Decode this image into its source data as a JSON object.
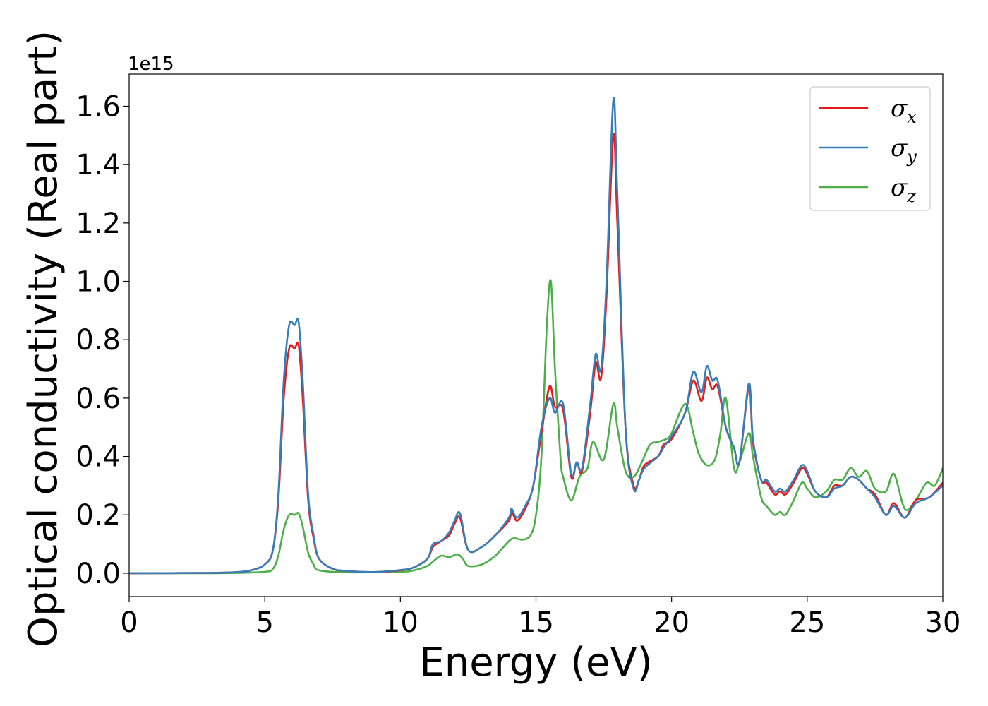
{
  "chart_data": {
    "type": "line",
    "xlabel": "Energy (eV)",
    "ylabel": "Optical conductivity (Real part)",
    "y_offset_label": "1e15",
    "xlim": [
      0,
      30
    ],
    "ylim": [
      -0.08,
      1.71
    ],
    "x_ticks": [
      0,
      5,
      10,
      15,
      20,
      25,
      30
    ],
    "x_tick_labels": [
      "0",
      "5",
      "10",
      "15",
      "20",
      "25",
      "30"
    ],
    "y_ticks": [
      0.0,
      0.2,
      0.4,
      0.6,
      0.8,
      1.0,
      1.2,
      1.4,
      1.6
    ],
    "y_tick_labels": [
      "0.0",
      "0.2",
      "0.4",
      "0.6",
      "0.8",
      "1.0",
      "1.2",
      "1.4",
      "1.6"
    ],
    "grid": false,
    "legend_position": "top-right",
    "legend": [
      {
        "symbol": "σ",
        "subscript": "x",
        "color": "#e41a1c"
      },
      {
        "symbol": "σ",
        "subscript": "y",
        "color": "#377eb8"
      },
      {
        "symbol": "σ",
        "subscript": "z",
        "color": "#4daf4a"
      }
    ],
    "series": [
      {
        "color": "#e41a1c",
        "points": [
          [
            0,
            0
          ],
          [
            3,
            0.001
          ],
          [
            4,
            0.004
          ],
          [
            4.5,
            0.01
          ],
          [
            5,
            0.03
          ],
          [
            5.3,
            0.08
          ],
          [
            5.5,
            0.25
          ],
          [
            5.7,
            0.6
          ],
          [
            5.9,
            0.77
          ],
          [
            6.1,
            0.77
          ],
          [
            6.25,
            0.78
          ],
          [
            6.4,
            0.6
          ],
          [
            6.6,
            0.25
          ],
          [
            6.8,
            0.12
          ],
          [
            7,
            0.05
          ],
          [
            7.5,
            0.015
          ],
          [
            8,
            0.008
          ],
          [
            9,
            0.004
          ],
          [
            10,
            0.01
          ],
          [
            10.5,
            0.02
          ],
          [
            11,
            0.05
          ],
          [
            11.2,
            0.09
          ],
          [
            11.5,
            0.11
          ],
          [
            11.8,
            0.13
          ],
          [
            12,
            0.17
          ],
          [
            12.2,
            0.19
          ],
          [
            12.5,
            0.08
          ],
          [
            13,
            0.09
          ],
          [
            13.5,
            0.13
          ],
          [
            14,
            0.18
          ],
          [
            14.1,
            0.21
          ],
          [
            14.3,
            0.18
          ],
          [
            14.6,
            0.22
          ],
          [
            14.9,
            0.3
          ],
          [
            15.2,
            0.48
          ],
          [
            15.5,
            0.64
          ],
          [
            15.7,
            0.57
          ],
          [
            16,
            0.56
          ],
          [
            16.3,
            0.33
          ],
          [
            16.5,
            0.38
          ],
          [
            16.7,
            0.35
          ],
          [
            17,
            0.55
          ],
          [
            17.2,
            0.72
          ],
          [
            17.4,
            0.67
          ],
          [
            17.6,
            0.95
          ],
          [
            17.85,
            1.5
          ],
          [
            18,
            1.2
          ],
          [
            18.3,
            0.5
          ],
          [
            18.6,
            0.3
          ],
          [
            18.8,
            0.32
          ],
          [
            19,
            0.37
          ],
          [
            19.5,
            0.4
          ],
          [
            19.7,
            0.44
          ],
          [
            20,
            0.46
          ],
          [
            20.5,
            0.55
          ],
          [
            20.8,
            0.66
          ],
          [
            21.1,
            0.59
          ],
          [
            21.3,
            0.67
          ],
          [
            21.5,
            0.63
          ],
          [
            21.7,
            0.64
          ],
          [
            22,
            0.5
          ],
          [
            22.3,
            0.43
          ],
          [
            22.5,
            0.38
          ],
          [
            22.85,
            0.64
          ],
          [
            23,
            0.45
          ],
          [
            23.3,
            0.32
          ],
          [
            23.5,
            0.31
          ],
          [
            23.8,
            0.27
          ],
          [
            24,
            0.28
          ],
          [
            24.2,
            0.27
          ],
          [
            24.5,
            0.31
          ],
          [
            24.8,
            0.36
          ],
          [
            25,
            0.34
          ],
          [
            25.3,
            0.28
          ],
          [
            25.7,
            0.26
          ],
          [
            26,
            0.3
          ],
          [
            26.3,
            0.3
          ],
          [
            26.6,
            0.33
          ],
          [
            26.9,
            0.32
          ],
          [
            27.2,
            0.29
          ],
          [
            27.5,
            0.27
          ],
          [
            27.9,
            0.2
          ],
          [
            28.2,
            0.24
          ],
          [
            28.6,
            0.19
          ],
          [
            29,
            0.25
          ],
          [
            29.5,
            0.26
          ],
          [
            30,
            0.31
          ]
        ]
      },
      {
        "color": "#377eb8",
        "points": [
          [
            0,
            0
          ],
          [
            3,
            0.001
          ],
          [
            4,
            0.004
          ],
          [
            4.5,
            0.01
          ],
          [
            5,
            0.03
          ],
          [
            5.3,
            0.08
          ],
          [
            5.5,
            0.27
          ],
          [
            5.7,
            0.66
          ],
          [
            5.9,
            0.85
          ],
          [
            6.1,
            0.85
          ],
          [
            6.25,
            0.86
          ],
          [
            6.4,
            0.66
          ],
          [
            6.6,
            0.27
          ],
          [
            6.8,
            0.13
          ],
          [
            7,
            0.05
          ],
          [
            7.5,
            0.016
          ],
          [
            8,
            0.008
          ],
          [
            9,
            0.004
          ],
          [
            10,
            0.011
          ],
          [
            10.5,
            0.02
          ],
          [
            11,
            0.05
          ],
          [
            11.2,
            0.1
          ],
          [
            11.5,
            0.11
          ],
          [
            11.8,
            0.14
          ],
          [
            12,
            0.18
          ],
          [
            12.2,
            0.205
          ],
          [
            12.5,
            0.08
          ],
          [
            13,
            0.09
          ],
          [
            13.5,
            0.13
          ],
          [
            14,
            0.19
          ],
          [
            14.1,
            0.22
          ],
          [
            14.3,
            0.19
          ],
          [
            14.6,
            0.23
          ],
          [
            14.9,
            0.3
          ],
          [
            15.2,
            0.5
          ],
          [
            15.5,
            0.6
          ],
          [
            15.7,
            0.55
          ],
          [
            16,
            0.58
          ],
          [
            16.3,
            0.34
          ],
          [
            16.5,
            0.38
          ],
          [
            16.7,
            0.36
          ],
          [
            17,
            0.58
          ],
          [
            17.2,
            0.75
          ],
          [
            17.4,
            0.7
          ],
          [
            17.6,
            1.0
          ],
          [
            17.85,
            1.62
          ],
          [
            18,
            1.3
          ],
          [
            18.3,
            0.5
          ],
          [
            18.6,
            0.29
          ],
          [
            18.8,
            0.32
          ],
          [
            19,
            0.36
          ],
          [
            19.5,
            0.4
          ],
          [
            19.7,
            0.43
          ],
          [
            20,
            0.47
          ],
          [
            20.5,
            0.55
          ],
          [
            20.8,
            0.69
          ],
          [
            21.1,
            0.62
          ],
          [
            21.3,
            0.71
          ],
          [
            21.5,
            0.66
          ],
          [
            21.7,
            0.66
          ],
          [
            22,
            0.5
          ],
          [
            22.3,
            0.43
          ],
          [
            22.5,
            0.38
          ],
          [
            22.85,
            0.65
          ],
          [
            23,
            0.46
          ],
          [
            23.3,
            0.32
          ],
          [
            23.5,
            0.32
          ],
          [
            23.8,
            0.28
          ],
          [
            24,
            0.29
          ],
          [
            24.2,
            0.28
          ],
          [
            24.5,
            0.32
          ],
          [
            24.8,
            0.37
          ],
          [
            25,
            0.35
          ],
          [
            25.3,
            0.28
          ],
          [
            25.7,
            0.26
          ],
          [
            26,
            0.29
          ],
          [
            26.3,
            0.3
          ],
          [
            26.6,
            0.33
          ],
          [
            26.9,
            0.32
          ],
          [
            27.2,
            0.29
          ],
          [
            27.5,
            0.26
          ],
          [
            27.9,
            0.2
          ],
          [
            28.2,
            0.23
          ],
          [
            28.6,
            0.19
          ],
          [
            29,
            0.24
          ],
          [
            29.5,
            0.26
          ],
          [
            30,
            0.3
          ]
        ]
      },
      {
        "color": "#4daf4a",
        "points": [
          [
            0,
            0
          ],
          [
            3,
            0
          ],
          [
            4,
            0.001
          ],
          [
            5,
            0.005
          ],
          [
            5.3,
            0.015
          ],
          [
            5.5,
            0.06
          ],
          [
            5.7,
            0.15
          ],
          [
            5.9,
            0.2
          ],
          [
            6.1,
            0.2
          ],
          [
            6.25,
            0.205
          ],
          [
            6.4,
            0.16
          ],
          [
            6.6,
            0.07
          ],
          [
            6.8,
            0.03
          ],
          [
            7,
            0.01
          ],
          [
            8,
            0.003
          ],
          [
            10,
            0.005
          ],
          [
            10.5,
            0.01
          ],
          [
            11,
            0.025
          ],
          [
            11.2,
            0.04
          ],
          [
            11.5,
            0.06
          ],
          [
            11.8,
            0.055
          ],
          [
            12.1,
            0.065
          ],
          [
            12.3,
            0.05
          ],
          [
            12.5,
            0.025
          ],
          [
            13,
            0.03
          ],
          [
            13.5,
            0.06
          ],
          [
            14,
            0.11
          ],
          [
            14.2,
            0.12
          ],
          [
            14.5,
            0.115
          ],
          [
            14.8,
            0.13
          ],
          [
            15,
            0.2
          ],
          [
            15.2,
            0.4
          ],
          [
            15.4,
            0.85
          ],
          [
            15.55,
            1.0
          ],
          [
            15.7,
            0.7
          ],
          [
            15.9,
            0.4
          ],
          [
            16,
            0.33
          ],
          [
            16.3,
            0.25
          ],
          [
            16.6,
            0.33
          ],
          [
            16.9,
            0.36
          ],
          [
            17.1,
            0.45
          ],
          [
            17.5,
            0.39
          ],
          [
            17.85,
            0.58
          ],
          [
            18,
            0.5
          ],
          [
            18.3,
            0.35
          ],
          [
            18.6,
            0.33
          ],
          [
            18.9,
            0.38
          ],
          [
            19.2,
            0.44
          ],
          [
            19.5,
            0.45
          ],
          [
            19.8,
            0.46
          ],
          [
            20,
            0.48
          ],
          [
            20.5,
            0.58
          ],
          [
            20.8,
            0.48
          ],
          [
            21,
            0.41
          ],
          [
            21.3,
            0.37
          ],
          [
            21.6,
            0.39
          ],
          [
            21.8,
            0.48
          ],
          [
            22,
            0.6
          ],
          [
            22.3,
            0.36
          ],
          [
            22.5,
            0.38
          ],
          [
            22.85,
            0.48
          ],
          [
            23,
            0.4
          ],
          [
            23.3,
            0.26
          ],
          [
            23.5,
            0.23
          ],
          [
            23.8,
            0.2
          ],
          [
            24,
            0.21
          ],
          [
            24.2,
            0.2
          ],
          [
            24.5,
            0.25
          ],
          [
            24.8,
            0.31
          ],
          [
            25,
            0.29
          ],
          [
            25.3,
            0.26
          ],
          [
            25.7,
            0.28
          ],
          [
            26,
            0.32
          ],
          [
            26.3,
            0.32
          ],
          [
            26.6,
            0.36
          ],
          [
            26.9,
            0.33
          ],
          [
            27.2,
            0.35
          ],
          [
            27.5,
            0.29
          ],
          [
            27.9,
            0.28
          ],
          [
            28.2,
            0.34
          ],
          [
            28.6,
            0.22
          ],
          [
            29,
            0.25
          ],
          [
            29.4,
            0.31
          ],
          [
            29.7,
            0.3
          ],
          [
            30,
            0.36
          ]
        ]
      }
    ]
  }
}
